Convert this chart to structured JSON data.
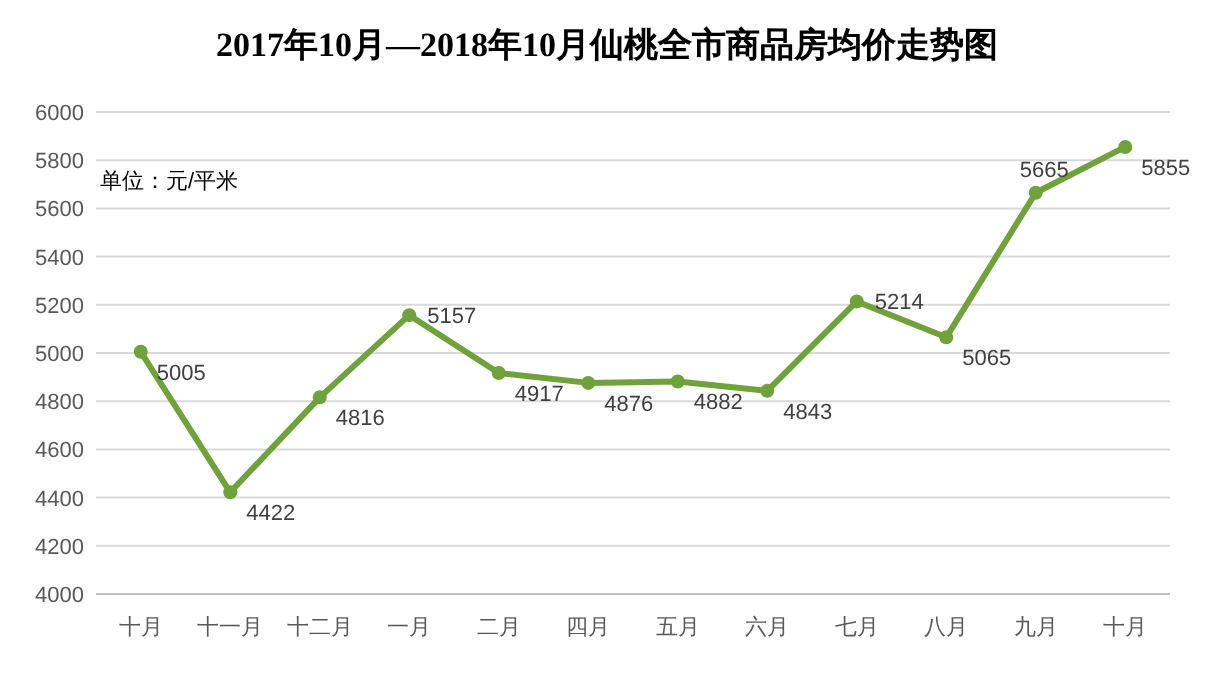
{
  "chart_data": {
    "type": "line",
    "title": "2017年10月—2018年10月仙桃全市商品房均价走势图",
    "categories": [
      "十月",
      "十一月",
      "十二月",
      "一月",
      "二月",
      "四月",
      "五月",
      "六月",
      "七月",
      "八月",
      "九月",
      "十月"
    ],
    "series": [
      {
        "color": "#6fa23a",
        "values": [
          5005,
          4422,
          4816,
          5157,
          4917,
          4876,
          4882,
          4843,
          5214,
          5065,
          5665,
          5855
        ]
      }
    ],
    "ylim": [
      4000,
      6000
    ],
    "yticks": [
      4000,
      4200,
      4400,
      4600,
      4800,
      5000,
      5200,
      5400,
      5600,
      5800,
      6000
    ],
    "grid": "y",
    "marker": "circle",
    "line_style": "solid",
    "data_labels": true,
    "annotations": [
      "单位：元/平米"
    ]
  }
}
